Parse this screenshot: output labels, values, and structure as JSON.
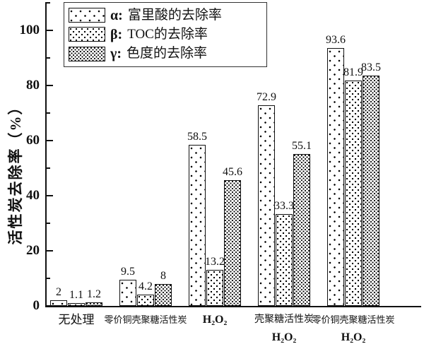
{
  "figure": {
    "background": "#ffffff",
    "ink_color": "#111111"
  },
  "legend": {
    "items": [
      {
        "symbol": "α:",
        "label": "富里酸的去除率",
        "pattern": "sparse-dots"
      },
      {
        "symbol": "β:",
        "label": "TOC的去除率",
        "pattern": "medium-dots"
      },
      {
        "symbol": "γ:",
        "label": "色度的去除率",
        "pattern": "dense-dots"
      }
    ]
  },
  "chart_data": {
    "type": "bar",
    "title": "",
    "ylabel": "活性炭去除率（%）",
    "xlabel": "",
    "ylim": [
      0,
      110
    ],
    "yticks": [
      0,
      20,
      40,
      60,
      80,
      100
    ],
    "minor_tick_step": 10,
    "grid": false,
    "legend_position": "upper left",
    "bar_labels": true,
    "categories": [
      "无处理",
      "零价铜壳聚糖活性炭",
      "H₂O₂",
      "壳聚糖活性炭 H₂O₂",
      "零价铜壳聚糖活性炭 H₂O₂"
    ],
    "category_lines": [
      [
        "无处理"
      ],
      [
        "零价铜壳聚糖活性炭"
      ],
      [
        "H₂O₂"
      ],
      [
        "壳聚糖活性炭",
        "H₂O₂"
      ],
      [
        "零价铜壳聚糖活性炭",
        "H₂O₂"
      ]
    ],
    "series": [
      {
        "name": "α: 富里酸的去除率",
        "pattern": "sparse-dots",
        "values": [
          2,
          9.5,
          58.5,
          72.9,
          93.6
        ]
      },
      {
        "name": "β: TOC的去除率",
        "pattern": "medium-dots",
        "values": [
          1.1,
          4.2,
          13.2,
          33.3,
          81.9
        ]
      },
      {
        "name": "γ: 色度的去除率",
        "pattern": "dense-dots",
        "values": [
          1.2,
          8,
          45.6,
          55.1,
          83.5
        ]
      }
    ]
  }
}
